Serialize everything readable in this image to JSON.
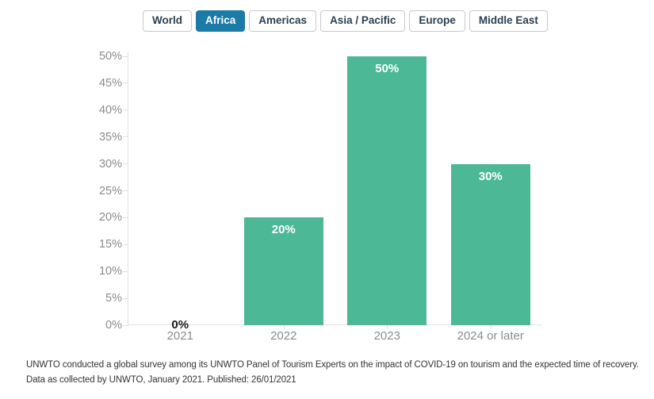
{
  "tabs": {
    "items": [
      {
        "label": "World",
        "active": false
      },
      {
        "label": "Africa",
        "active": true
      },
      {
        "label": "Americas",
        "active": false
      },
      {
        "label": "Asia / Pacific",
        "active": false
      },
      {
        "label": "Europe",
        "active": false
      },
      {
        "label": "Middle East",
        "active": false
      }
    ],
    "active_bg": "#1b7aa6",
    "text_color": "#2c3e50"
  },
  "chart_data": {
    "type": "bar",
    "categories": [
      "2021",
      "2022",
      "2023",
      "2024 or later"
    ],
    "values": [
      0,
      20,
      50,
      30
    ],
    "value_labels": [
      "0%",
      "20%",
      "50%",
      "30%"
    ],
    "title": "",
    "xlabel": "",
    "ylabel": "",
    "ylim": [
      0,
      50
    ],
    "ytick_step": 5,
    "ytick_labels": [
      "0%",
      "5%",
      "10%",
      "15%",
      "20%",
      "25%",
      "30%",
      "35%",
      "40%",
      "45%",
      "50%"
    ],
    "bar_color": "#4cb896",
    "bar_label_color": "#ffffff",
    "zero_label_color": "#1a1a1a",
    "axis_color": "#e0e0e0",
    "axis_text_color": "#8b8b8b",
    "grid": false,
    "legend": false
  },
  "footer": {
    "line1": "UNWTO conducted a global survey among its UNWTO Panel of Tourism Experts on the impact of COVID-19 on tourism and the expected time of recovery.",
    "line2": "Data as collected by UNWTO, January 2021. Published: 26/01/2021"
  }
}
